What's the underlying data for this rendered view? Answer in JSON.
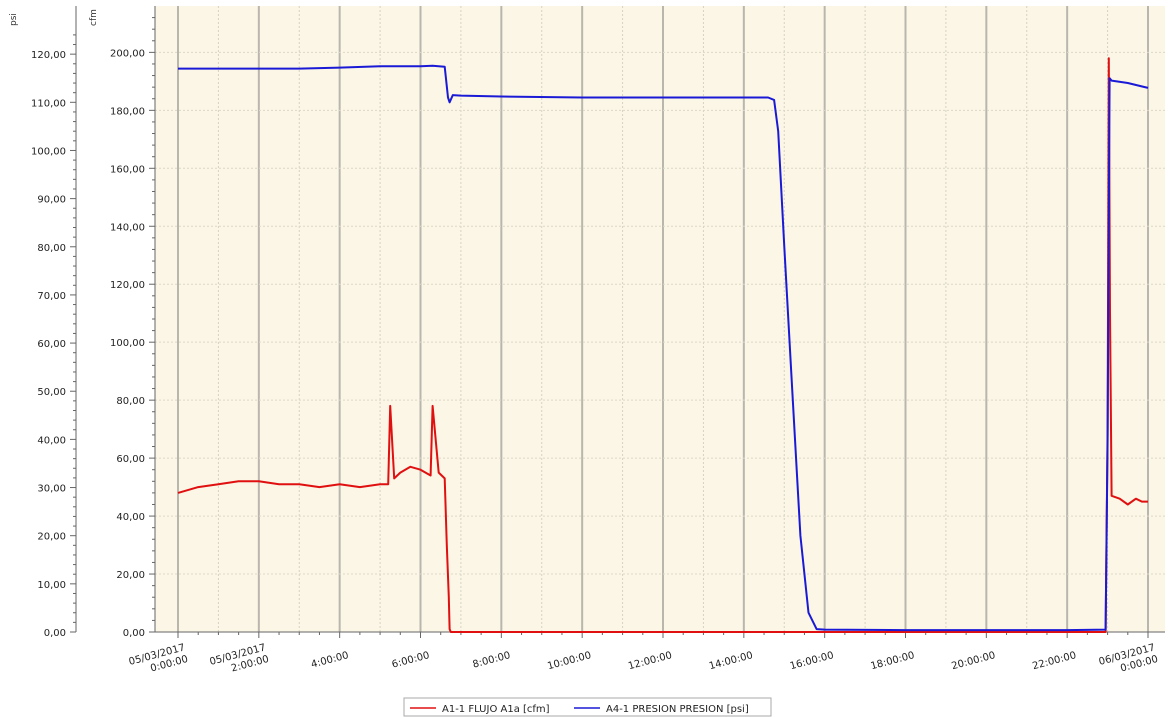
{
  "chart_data": {
    "type": "line",
    "title": "",
    "xlabel": "",
    "x_start": "05/03/2017 0:00:00",
    "x_end": "06/03/2017 0:00:00",
    "x_ticks": [
      {
        "hour": 0,
        "label": [
          "05/03/2017",
          "0:00:00"
        ]
      },
      {
        "hour": 2,
        "label": [
          "05/03/2017",
          "2:00:00"
        ]
      },
      {
        "hour": 4,
        "label": [
          "4:00:00"
        ]
      },
      {
        "hour": 6,
        "label": [
          "6:00:00"
        ]
      },
      {
        "hour": 8,
        "label": [
          "8:00:00"
        ]
      },
      {
        "hour": 10,
        "label": [
          "10:00:00"
        ]
      },
      {
        "hour": 12,
        "label": [
          "12:00:00"
        ]
      },
      {
        "hour": 14,
        "label": [
          "14:00:00"
        ]
      },
      {
        "hour": 16,
        "label": [
          "16:00:00"
        ]
      },
      {
        "hour": 18,
        "label": [
          "18:00:00"
        ]
      },
      {
        "hour": 20,
        "label": [
          "20:00:00"
        ]
      },
      {
        "hour": 22,
        "label": [
          "22:00:00"
        ]
      },
      {
        "hour": 24,
        "label": [
          "06/03/2017",
          "0:00:00"
        ]
      }
    ],
    "axes": {
      "psi": {
        "unit_label": "psi",
        "ylim": [
          0,
          130
        ],
        "ticks": [
          "0,00",
          "10,00",
          "20,00",
          "30,00",
          "40,00",
          "50,00",
          "60,00",
          "70,00",
          "80,00",
          "90,00",
          "100,00",
          "110,00",
          "120,00"
        ]
      },
      "cfm": {
        "unit_label": "cfm",
        "ylim": [
          0,
          216
        ],
        "ticks": [
          "0,00",
          "20,00",
          "40,00",
          "60,00",
          "80,00",
          "100,00",
          "120,00",
          "140,00",
          "160,00",
          "180,00",
          "200,00"
        ]
      }
    },
    "grid": true,
    "legend_position": "bottom-center",
    "series": [
      {
        "name": "A1-1 FLUJO A1a [cfm]",
        "color": "#e01010",
        "axis": "cfm",
        "x_hours": [
          0,
          0.5,
          1,
          1.5,
          2,
          2.5,
          3,
          3.5,
          4,
          4.5,
          5,
          5.2,
          5.25,
          5.35,
          5.5,
          5.75,
          6,
          6.25,
          6.3,
          6.45,
          6.6,
          6.65,
          6.7,
          6.72,
          6.75,
          8,
          10,
          12,
          14,
          16,
          18,
          20,
          22,
          22.95,
          23.0,
          23.03,
          23.06,
          23.1,
          23.3,
          23.5,
          23.7,
          23.85,
          24
        ],
        "values": [
          48,
          50,
          51,
          52,
          52,
          51,
          51,
          50,
          51,
          50,
          51,
          51,
          78,
          53,
          55,
          57,
          56,
          54,
          78,
          55,
          53,
          30,
          12,
          1,
          0,
          0,
          0,
          0,
          0,
          0,
          0,
          0,
          0,
          0,
          70,
          198,
          110,
          47,
          46,
          44,
          46,
          45,
          45
        ]
      },
      {
        "name": "A4-1 PRESION PRESION [psi]",
        "color": "#1a1ad6",
        "axis": "psi",
        "x_hours": [
          0,
          1,
          2,
          3,
          4,
          5,
          5.5,
          6,
          6.3,
          6.6,
          6.68,
          6.72,
          6.8,
          7,
          8,
          10,
          12,
          14,
          14.6,
          14.75,
          14.85,
          15,
          15.2,
          15.4,
          15.6,
          15.8,
          16,
          18,
          20,
          22,
          22.95,
          23.0,
          23.05,
          23.1,
          23.5,
          24
        ],
        "values": [
          117,
          117,
          117,
          117,
          117.2,
          117.5,
          117.5,
          117.5,
          117.6,
          117.4,
          111,
          110,
          111.5,
          111.4,
          111.2,
          111,
          111,
          111,
          111,
          110.5,
          104,
          80,
          50,
          20,
          4,
          0.6,
          0.5,
          0.4,
          0.4,
          0.4,
          0.5,
          40,
          115,
          114.5,
          114,
          113
        ]
      }
    ]
  }
}
